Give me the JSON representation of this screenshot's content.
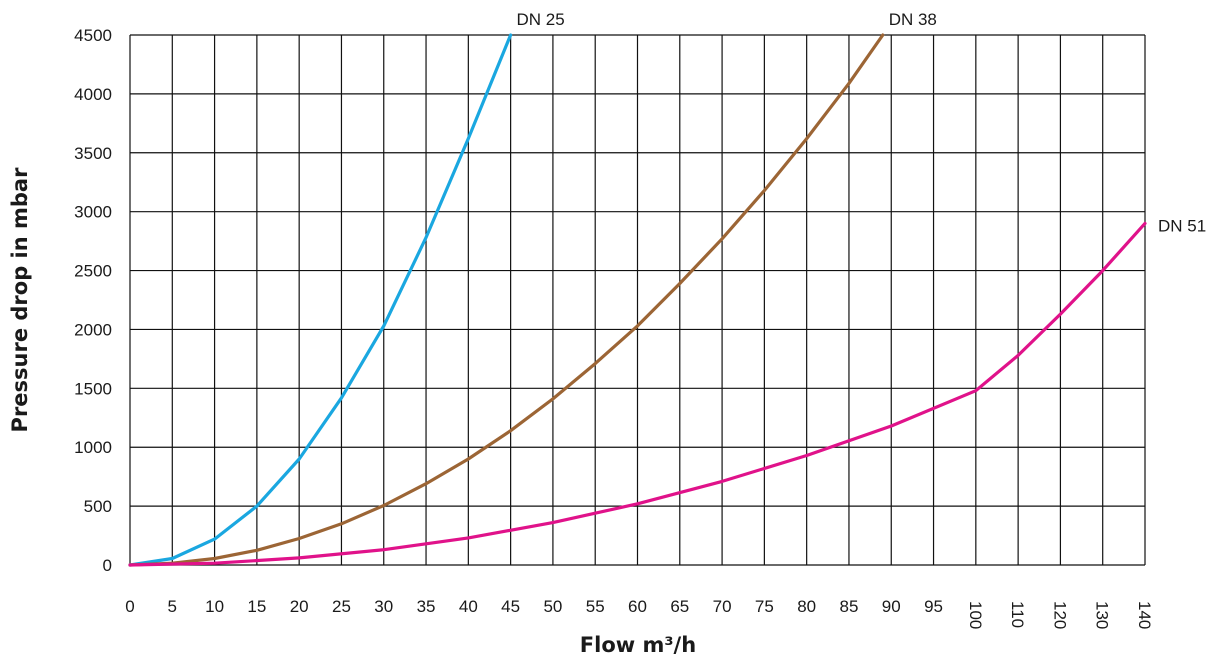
{
  "chart_data": {
    "type": "line",
    "title": "",
    "xlabel": "Flow m³/h",
    "ylabel": "Pressure drop in mbar",
    "x_ticks": [
      "0",
      "5",
      "10",
      "15",
      "20",
      "25",
      "30",
      "35",
      "40",
      "45",
      "50",
      "55",
      "60",
      "65",
      "70",
      "75",
      "80",
      "85",
      "90",
      "95",
      "100",
      "110",
      "120",
      "130",
      "140"
    ],
    "y_ticks": [
      0,
      500,
      1000,
      1500,
      2000,
      2500,
      3000,
      3500,
      4000,
      4500
    ],
    "ylim": [
      0,
      4500
    ],
    "grid": true,
    "series": [
      {
        "name": "DN 25",
        "color": "#1aa7e0",
        "x": [
          0,
          5,
          10,
          15,
          20,
          25,
          30,
          35,
          40,
          45
        ],
        "y": [
          0,
          55,
          220,
          500,
          900,
          1420,
          2030,
          2780,
          3620,
          4500
        ]
      },
      {
        "name": "DN 38",
        "color": "#9c6535",
        "x": [
          0,
          5,
          10,
          15,
          20,
          25,
          30,
          35,
          40,
          45,
          50,
          55,
          60,
          65,
          70,
          75,
          80,
          85,
          89
        ],
        "y": [
          0,
          15,
          55,
          125,
          225,
          350,
          505,
          690,
          900,
          1140,
          1410,
          1710,
          2030,
          2390,
          2770,
          3180,
          3620,
          4090,
          4500
        ]
      },
      {
        "name": "DN 51",
        "color": "#e0128a",
        "x": [
          0,
          10,
          20,
          30,
          40,
          50,
          60,
          70,
          80,
          90,
          100,
          110,
          120,
          130,
          140
        ],
        "y": [
          0,
          15,
          60,
          130,
          230,
          360,
          520,
          710,
          930,
          1180,
          1480,
          1780,
          2130,
          2500,
          2900
        ]
      }
    ]
  }
}
